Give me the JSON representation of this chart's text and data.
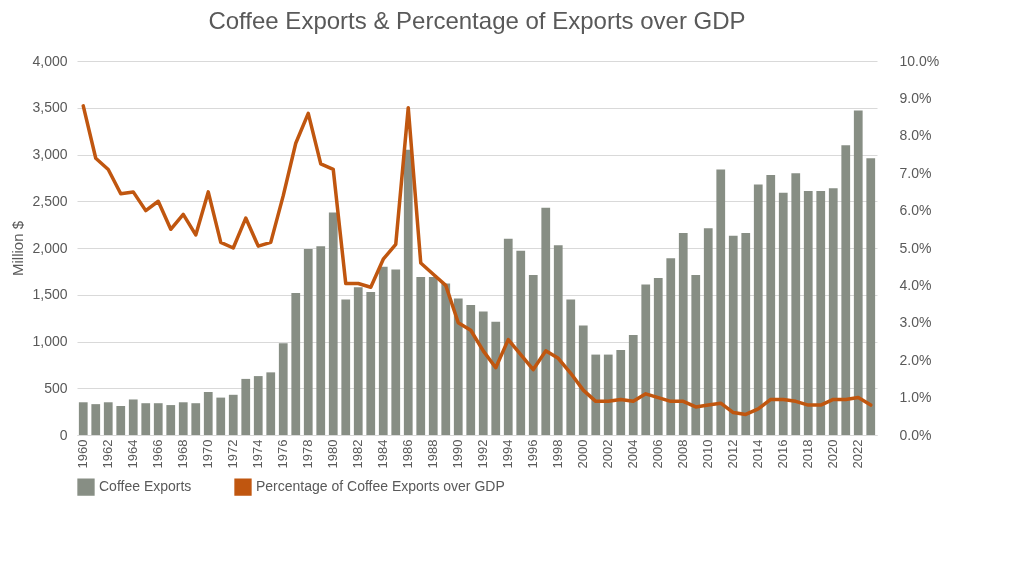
{
  "chart_data": {
    "type": "bar",
    "title": "Coffee Exports & Percentage of Exports over GDP",
    "ylabel": "Million $",
    "categories": [
      "1960",
      null,
      "1962",
      null,
      "1964",
      null,
      "1966",
      null,
      "1968",
      null,
      "1970",
      null,
      "1972",
      null,
      "1974",
      null,
      "1976",
      null,
      "1978",
      null,
      "1980",
      null,
      "1982",
      null,
      "1984",
      null,
      "1986",
      null,
      "1988",
      null,
      "1990",
      null,
      "1992",
      null,
      "1994",
      null,
      "1996",
      null,
      "1998",
      null,
      "2000",
      null,
      "2002",
      null,
      "2004",
      null,
      "2006",
      null,
      "2008",
      null,
      "2010",
      null,
      "2012",
      null,
      "2014",
      null,
      "2016",
      null,
      "2018",
      null,
      "2020",
      null,
      "2022",
      null
    ],
    "series": [
      {
        "name": "Coffee Exports",
        "color": "#878e84",
        "values": [
          350,
          330,
          350,
          310,
          380,
          340,
          340,
          320,
          350,
          340,
          460,
          400,
          430,
          600,
          630,
          670,
          980,
          1520,
          1990,
          2020,
          2380,
          1450,
          1580,
          1530,
          1800,
          1770,
          3050,
          1690,
          1690,
          1620,
          1460,
          1390,
          1320,
          1210,
          2100,
          1970,
          1710,
          2430,
          2030,
          1450,
          1170,
          860,
          860,
          910,
          1070,
          1610,
          1680,
          1890,
          2160,
          1710,
          2210,
          2840,
          2130,
          2160,
          2680,
          2780,
          2590,
          2800,
          2610,
          2610,
          2640,
          3100,
          3470,
          2960
        ]
      },
      {
        "name": "Percentage of Coffee Exports over GDP",
        "type": "line",
        "axis": "y2",
        "color": "#c0560f",
        "values": [
          8.8,
          7.4,
          7.1,
          6.45,
          6.5,
          6.0,
          6.25,
          5.5,
          5.9,
          5.35,
          6.5,
          5.15,
          5.0,
          5.8,
          5.05,
          5.15,
          6.4,
          7.8,
          8.6,
          7.25,
          7.1,
          4.05,
          4.05,
          3.95,
          4.7,
          5.1,
          8.75,
          4.6,
          4.3,
          4.0,
          3.0,
          2.8,
          2.25,
          1.8,
          2.55,
          2.15,
          1.75,
          2.25,
          2.05,
          1.65,
          1.2,
          0.9,
          0.9,
          0.95,
          0.9,
          1.1,
          1.0,
          0.9,
          0.9,
          0.75,
          0.8,
          0.85,
          0.6,
          0.55,
          0.7,
          0.95,
          0.95,
          0.9,
          0.8,
          0.8,
          0.95,
          0.95,
          1.0,
          0.8
        ]
      }
    ],
    "ylim": [
      0,
      4000
    ],
    "yticks": [
      0,
      {
        "value": 500,
        "label": "500"
      },
      {
        "value": 1000,
        "label": "1,000"
      },
      {
        "value": 1500,
        "label": "1,500"
      },
      {
        "value": 2000,
        "label": "2,000"
      },
      {
        "value": 2500,
        "label": "2,500"
      },
      {
        "value": 3000,
        "label": "3,000"
      },
      {
        "value": 3500,
        "label": "3,500"
      },
      {
        "value": 4000,
        "label": "4,000"
      }
    ],
    "y2lim": [
      0,
      10
    ],
    "y2ticks": [
      {
        "value": 0,
        "label": "0.0%"
      },
      {
        "value": 1,
        "label": "1.0%"
      },
      {
        "value": 2,
        "label": "2.0%"
      },
      {
        "value": 3,
        "label": "3.0%"
      },
      {
        "value": 4,
        "label": "4.0%"
      },
      {
        "value": 5,
        "label": "5.0%"
      },
      {
        "value": 6,
        "label": "6.0%"
      },
      {
        "value": 7,
        "label": "7.0%"
      },
      {
        "value": 8,
        "label": "8.0%"
      },
      {
        "value": 9,
        "label": "9.0%"
      },
      {
        "value": 10,
        "label": "10.0%"
      }
    ],
    "grid": "y",
    "legend": "bottom",
    "line_style": "solid"
  }
}
